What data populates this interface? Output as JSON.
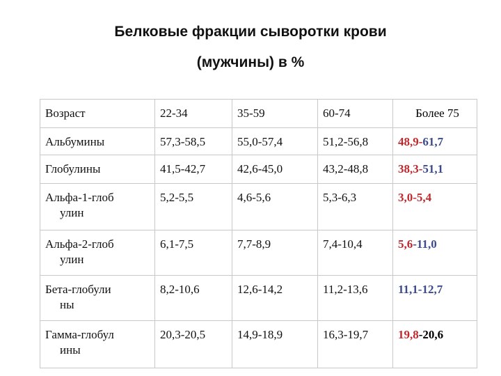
{
  "header": {
    "title": [
      "Белковые фракции сыворотки крови",
      "(мужчины)  в  %"
    ]
  },
  "table": {
    "rows": [
      [
        "Возраст",
        "22-34",
        "35-59",
        "60-74",
        [
          {
            "text": "Более 75",
            "color": "#000000"
          }
        ]
      ],
      [
        "Альбумины",
        "57,3-58,5",
        "55,0-57,4",
        "51,2-56,8",
        [
          {
            "text": "48,9-",
            "color": "#c0282d"
          },
          {
            "text": "61,7",
            "color": "#3b4a8a"
          }
        ]
      ],
      [
        "Глобулины",
        "41,5-42,7",
        "42,6-45,0",
        "43,2-48,8",
        [
          {
            "text": "38,3-",
            "color": "#c0282d"
          },
          {
            "text": "51,1",
            "color": "#3b4a8a"
          }
        ]
      ],
      [
        [
          "Альфа-1-глоб",
          "улин"
        ],
        "5,2-5,5",
        "4,6-5,6",
        "5,3-6,3",
        [
          {
            "text": "3,0-5,4",
            "color": "#c0282d"
          }
        ]
      ],
      [
        [
          "Альфа-2-глоб",
          "улин"
        ],
        "6,1-7,5",
        "7,7-8,9",
        "7,4-10,4",
        [
          {
            "text": "5,6",
            "color": "#c0282d"
          },
          {
            "text": "-11,0",
            "color": "#3b4a8a"
          }
        ]
      ],
      [
        [
          "Бета-глобули",
          "ны"
        ],
        "8,2-10,6",
        "12,6-14,2",
        "11,2-13,6",
        [
          {
            "text": "11,1-12,7",
            "color": "#3b4a8a"
          }
        ]
      ],
      [
        [
          "Гамма-глобул",
          "ины"
        ],
        "20,3-20,5",
        "14,9-18,9",
        "16,3-19,7",
        [
          {
            "text": "19,8",
            "color": "#c0282d"
          },
          {
            "text": "-20,6",
            "color": "#000000"
          }
        ]
      ]
    ]
  }
}
